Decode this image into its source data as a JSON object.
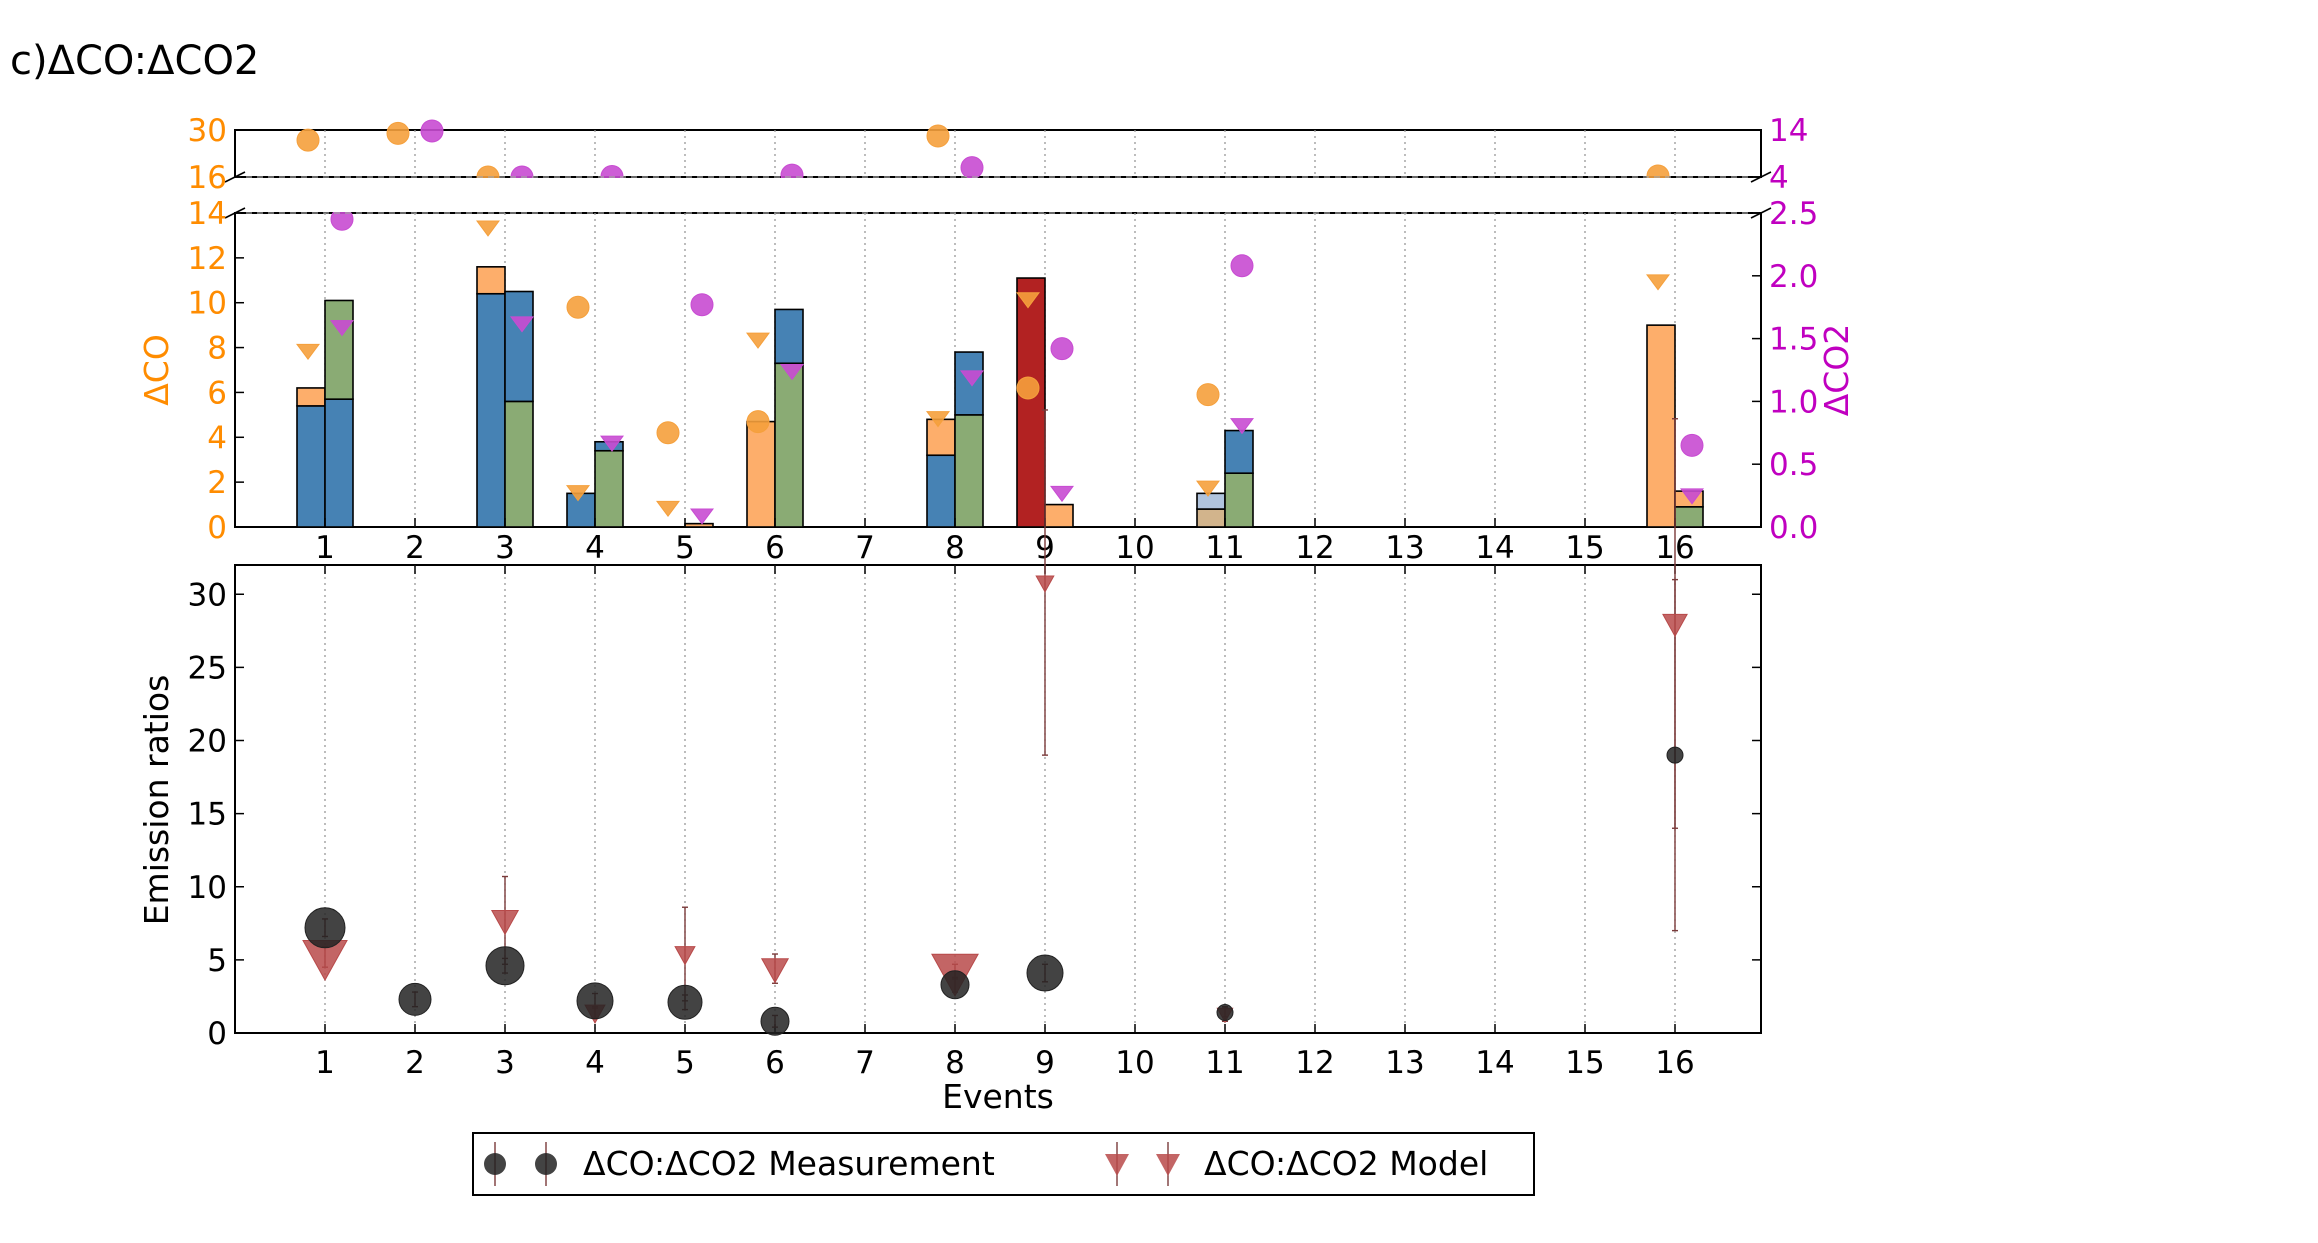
{
  "title": "c)ΔCO:ΔCO2",
  "colors": {
    "orange_axis": "#ff8c00",
    "magenta_axis": "#c000c0",
    "bar_orange": "#fdae6b",
    "bar_blue": "#4682b4",
    "bar_green": "#8aab74",
    "bar_red": "#b22222",
    "bar_lightblue": "#b0c4de",
    "bar_tan": "#d2b48c",
    "marker_orange": "#f5a03c",
    "marker_magenta": "#c84bd2",
    "meas_marker": "#222222",
    "model_marker": "#b84a4a"
  },
  "chart_data": [
    {
      "type": "bar",
      "name": "top-bar-panel",
      "ylabel_left": "ΔCO",
      "ylabel_right": "ΔCO2",
      "left_ticks_lower": [
        "0",
        "2",
        "4",
        "6",
        "8",
        "10",
        "12",
        "14"
      ],
      "left_ticks_upper": [
        "16",
        "30"
      ],
      "right_ticks_lower": [
        "0.0",
        "0.5",
        "1.0",
        "1.5",
        "2.0",
        "2.5"
      ],
      "right_ticks_upper": [
        "4",
        "14"
      ],
      "x_ticks": [
        "1",
        "2",
        "3",
        "4",
        "5",
        "6",
        "7",
        "8",
        "9",
        "10",
        "11",
        "12",
        "13",
        "14",
        "15",
        "16"
      ],
      "ylim_left_lower": [
        0,
        14
      ],
      "ylim_left_upper": [
        16,
        30
      ],
      "ylim_right_lower": [
        0,
        2.5
      ],
      "ylim_right_upper": [
        4,
        14
      ],
      "bars": [
        {
          "event": 1,
          "side": "left",
          "segments": [
            {
              "value": 5.4,
              "color": "bar_blue"
            },
            {
              "value": 0.8,
              "color": "bar_orange"
            }
          ]
        },
        {
          "event": 1,
          "side": "right",
          "segments": [
            {
              "value": 5.7,
              "color": "bar_blue"
            },
            {
              "value": 4.4,
              "color": "bar_green"
            }
          ]
        },
        {
          "event": 3,
          "side": "left",
          "segments": [
            {
              "value": 10.4,
              "color": "bar_blue"
            },
            {
              "value": 1.2,
              "color": "bar_orange"
            }
          ]
        },
        {
          "event": 3,
          "side": "right",
          "segments": [
            {
              "value": 5.6,
              "color": "bar_green"
            },
            {
              "value": 4.9,
              "color": "bar_blue"
            }
          ]
        },
        {
          "event": 4,
          "side": "left",
          "segments": [
            {
              "value": 1.5,
              "color": "bar_blue"
            }
          ]
        },
        {
          "event": 4,
          "side": "right",
          "segments": [
            {
              "value": 3.4,
              "color": "bar_green"
            },
            {
              "value": 0.4,
              "color": "bar_blue"
            }
          ]
        },
        {
          "event": 5,
          "side": "right",
          "segments": [
            {
              "value": 0.15,
              "color": "bar_orange"
            }
          ]
        },
        {
          "event": 6,
          "side": "left",
          "segments": [
            {
              "value": 4.7,
              "color": "bar_orange"
            }
          ]
        },
        {
          "event": 6,
          "side": "right",
          "segments": [
            {
              "value": 7.3,
              "color": "bar_green"
            },
            {
              "value": 2.4,
              "color": "bar_blue"
            }
          ]
        },
        {
          "event": 8,
          "side": "left",
          "segments": [
            {
              "value": 3.2,
              "color": "bar_blue"
            },
            {
              "value": 1.6,
              "color": "bar_orange"
            }
          ]
        },
        {
          "event": 8,
          "side": "right",
          "segments": [
            {
              "value": 5.0,
              "color": "bar_green"
            },
            {
              "value": 2.8,
              "color": "bar_blue"
            }
          ]
        },
        {
          "event": 9,
          "side": "left",
          "segments": [
            {
              "value": 11.1,
              "color": "bar_red"
            }
          ]
        },
        {
          "event": 9,
          "side": "right",
          "segments": [
            {
              "value": 1.0,
              "color": "bar_orange"
            }
          ]
        },
        {
          "event": 11,
          "side": "left",
          "segments": [
            {
              "value": 0.8,
              "color": "bar_tan"
            },
            {
              "value": 0.7,
              "color": "bar_lightblue"
            }
          ]
        },
        {
          "event": 11,
          "side": "right",
          "segments": [
            {
              "value": 2.4,
              "color": "bar_green"
            },
            {
              "value": 1.9,
              "color": "bar_blue"
            }
          ]
        },
        {
          "event": 16,
          "side": "left",
          "segments": [
            {
              "value": 9.0,
              "color": "bar_orange"
            }
          ]
        },
        {
          "event": 16,
          "side": "right",
          "segments": [
            {
              "value": 0.9,
              "color": "bar_green"
            },
            {
              "value": 0.7,
              "color": "bar_orange"
            }
          ]
        }
      ],
      "delta_co_circles": [
        {
          "event": 1,
          "value": 27.0
        },
        {
          "event": 2,
          "value": 29.0
        },
        {
          "event": 3,
          "value": 16.0
        },
        {
          "event": 4,
          "value": 9.8
        },
        {
          "event": 5,
          "value": 4.2
        },
        {
          "event": 6,
          "value": 4.7
        },
        {
          "event": 8,
          "value": 28.2
        },
        {
          "event": 9,
          "value": 6.2
        },
        {
          "event": 11,
          "value": 5.9
        },
        {
          "event": 16,
          "value": 16.3
        }
      ],
      "delta_co_triangles": [
        {
          "event": 1,
          "value": 7.9
        },
        {
          "event": 3,
          "value": 13.4
        },
        {
          "event": 4,
          "value": 1.6
        },
        {
          "event": 5,
          "value": 0.9
        },
        {
          "event": 6,
          "value": 8.4
        },
        {
          "event": 8,
          "value": 4.9
        },
        {
          "event": 9,
          "value": 10.2
        },
        {
          "event": 11,
          "value": 1.8
        },
        {
          "event": 16,
          "value": 11.0
        }
      ],
      "delta_co2_circles": [
        {
          "event": 1,
          "value": 2.45
        },
        {
          "event": 2,
          "value": 13.8
        },
        {
          "event": 3,
          "value": 4.0
        },
        {
          "event": 4,
          "value": 4.1
        },
        {
          "event": 5,
          "value": 1.77
        },
        {
          "event": 6,
          "value": 4.4
        },
        {
          "event": 8,
          "value": 6.0
        },
        {
          "event": 9,
          "value": 1.42
        },
        {
          "event": 11,
          "value": 2.08
        },
        {
          "event": 16,
          "value": 0.65
        }
      ],
      "delta_co2_triangles": [
        {
          "event": 1,
          "value": 1.6
        },
        {
          "event": 3,
          "value": 1.63
        },
        {
          "event": 4,
          "value": 0.68
        },
        {
          "event": 5,
          "value": 0.1
        },
        {
          "event": 6,
          "value": 1.25
        },
        {
          "event": 8,
          "value": 1.2
        },
        {
          "event": 9,
          "value": 0.28
        },
        {
          "event": 11,
          "value": 0.82
        },
        {
          "event": 16,
          "value": 0.26
        }
      ]
    },
    {
      "type": "scatter",
      "name": "emission-ratio-panel",
      "xlabel": "Events",
      "ylabel": "Emission ratios",
      "x_ticks": [
        "1",
        "2",
        "3",
        "4",
        "5",
        "6",
        "7",
        "8",
        "9",
        "10",
        "11",
        "12",
        "13",
        "14",
        "15",
        "16"
      ],
      "y_ticks": [
        "0",
        "5",
        "10",
        "15",
        "20",
        "25",
        "30"
      ],
      "ylim": [
        0,
        32
      ],
      "series": [
        {
          "name": "ΔCO:ΔCO2 Measurement",
          "marker": "circle",
          "points": [
            {
              "event": 1,
              "value": 7.2,
              "err": 0.6,
              "size": 1.0
            },
            {
              "event": 2,
              "value": 2.3,
              "err": 0.5,
              "size": 0.8
            },
            {
              "event": 3,
              "value": 4.6,
              "err": 0.5,
              "size": 0.95
            },
            {
              "event": 4,
              "value": 2.2,
              "err": 0.5,
              "size": 0.9
            },
            {
              "event": 5,
              "value": 2.1,
              "err": 0.5,
              "size": 0.85
            },
            {
              "event": 6,
              "value": 0.8,
              "err": 0.4,
              "size": 0.7
            },
            {
              "event": 8,
              "value": 3.3,
              "err": 0.5,
              "size": 0.7
            },
            {
              "event": 9,
              "value": 4.1,
              "err": 0.6,
              "size": 0.9
            },
            {
              "event": 11,
              "value": 1.4,
              "err": 0.3,
              "size": 0.4
            },
            {
              "event": 16,
              "value": 19.0,
              "err": 12.0,
              "size": 0.4
            }
          ]
        },
        {
          "name": "ΔCO:ΔCO2 Model",
          "marker": "triangle-down",
          "points": [
            {
              "event": 1,
              "value": 5.2,
              "err": 0.7,
              "size": 1.0
            },
            {
              "event": 3,
              "value": 7.7,
              "err": 3.0,
              "size": 0.6
            },
            {
              "event": 4,
              "value": 1.4,
              "err": 0.4,
              "size": 0.45
            },
            {
              "event": 5,
              "value": 5.4,
              "err": 3.2,
              "size": 0.45
            },
            {
              "event": 6,
              "value": 4.4,
              "err": 1.0,
              "size": 0.6
            },
            {
              "event": 8,
              "value": 4.2,
              "err": 0.5,
              "size": 1.05
            },
            {
              "event": 9,
              "value": 30.8,
              "err": 11.8,
              "size": 0.4
            },
            {
              "event": 11,
              "value": 1.3,
              "err": 0.5,
              "size": 0.35
            },
            {
              "event": 16,
              "value": 28.0,
              "err": 14.0,
              "size": 0.55
            }
          ]
        }
      ]
    }
  ],
  "legend": {
    "entries": [
      {
        "label": "ΔCO:ΔCO2 Measurement",
        "marker": "circle"
      },
      {
        "label": "ΔCO:ΔCO2 Model",
        "marker": "triangle-down"
      }
    ]
  }
}
